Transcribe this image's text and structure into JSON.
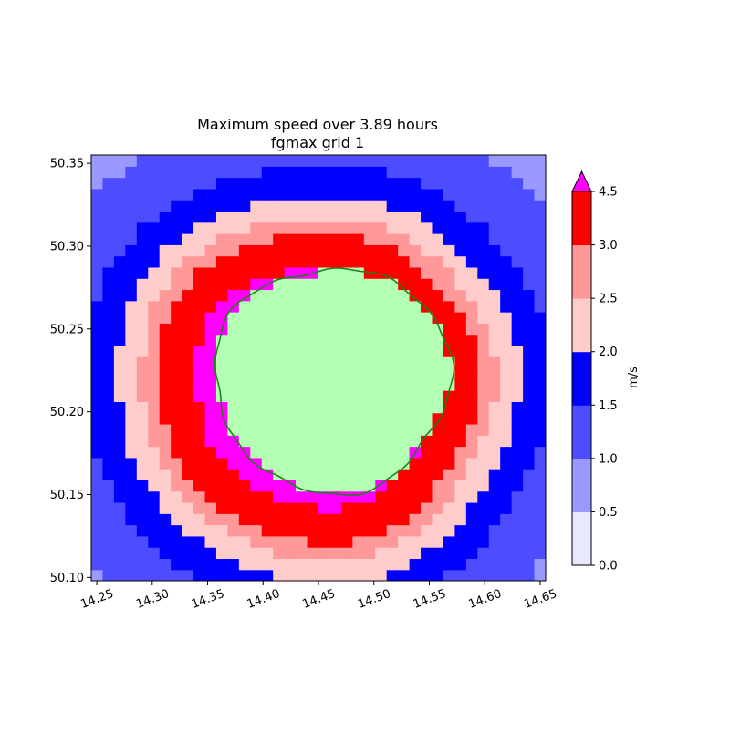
{
  "chart_data": {
    "type": "heatmap",
    "title": "Maximum speed over 3.89 hours",
    "subtitle": "fgmax grid 1",
    "xlabel": "",
    "ylabel": "",
    "xlim": [
      14.245,
      14.655
    ],
    "ylim": [
      50.098,
      50.355
    ],
    "x_ticks": [
      "14.25",
      "14.30",
      "14.35",
      "14.40",
      "14.45",
      "14.50",
      "14.55",
      "14.60",
      "14.65"
    ],
    "y_ticks": [
      "50.10",
      "50.15",
      "50.20",
      "50.25",
      "50.30",
      "50.35"
    ],
    "rotated_x_ticks": true,
    "center": [
      14.4626,
      50.2199
    ],
    "land_color": "#b3ffb3",
    "contour_color": "#1b7d1b",
    "colorbar": {
      "label": "m/s",
      "levels": [
        0.0,
        0.5,
        1.0,
        1.5,
        2.0,
        2.5,
        3.0,
        4.5
      ],
      "tick_labels": [
        "0.0",
        "0.5",
        "1.0",
        "1.5",
        "2.0",
        "2.5",
        "3.0",
        "4.5"
      ],
      "colors": [
        "#e8e8ff",
        "#9999ff",
        "#4d4dff",
        "#0000ff",
        "#ffcccc",
        "#ff9999",
        "#ff0000"
      ],
      "over_color": "#ff00ff",
      "extend": "max"
    }
  }
}
